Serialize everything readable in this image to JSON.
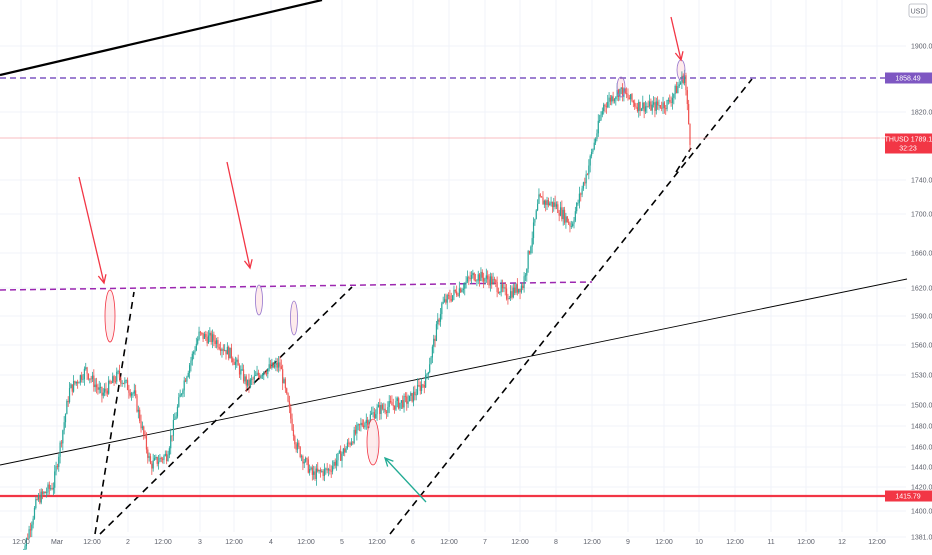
{
  "app": {
    "currency_label": "USD",
    "top_digit": "3"
  },
  "chart_data": {
    "type": "candlestick",
    "symbol": "ETHUSD",
    "price_readout": "1789.17",
    "countdown": "32:23",
    "ylim": [
      1372,
      1970
    ],
    "y_ticks": [
      "1381.00",
      "1400.00",
      "1420.00",
      "1440.00",
      "1460.00",
      "1480.00",
      "1500.00",
      "1530.00",
      "1560.00",
      "1590.00",
      "1620.00",
      "1660.00",
      "1700.00",
      "1740.00",
      "1820.00",
      "1900.00"
    ],
    "x_ticks": [
      "12:00",
      "Mar",
      "12:00",
      "2",
      "12:00",
      "3",
      "12:00",
      "4",
      "12:00",
      "5",
      "12:00",
      "6",
      "12:00",
      "7",
      "12:00",
      "8",
      "12:00",
      "9",
      "12:00",
      "10",
      "12:00",
      "11",
      "12:00",
      "12",
      "12:00"
    ],
    "level_tags": [
      {
        "label": "1858.49",
        "value": 1858.49,
        "color": "#7e57c2"
      },
      {
        "label": "1415.79",
        "value": 1415.79,
        "color": "#f23645"
      }
    ],
    "current_price": 1789.17,
    "horizontal_lines": [
      {
        "value": 1858.49,
        "color": "#7e57c2",
        "style": "dashed"
      },
      {
        "value": 1415.79,
        "color": "#f23645",
        "style": "solid"
      }
    ],
    "colors": {
      "up": "#26a69a",
      "down": "#ef5350",
      "support": "#f23645",
      "resistance": "#7e57c2",
      "trend": "#000000",
      "arrow_red": "#f23645",
      "arrow_green": "#22ab94"
    }
  }
}
